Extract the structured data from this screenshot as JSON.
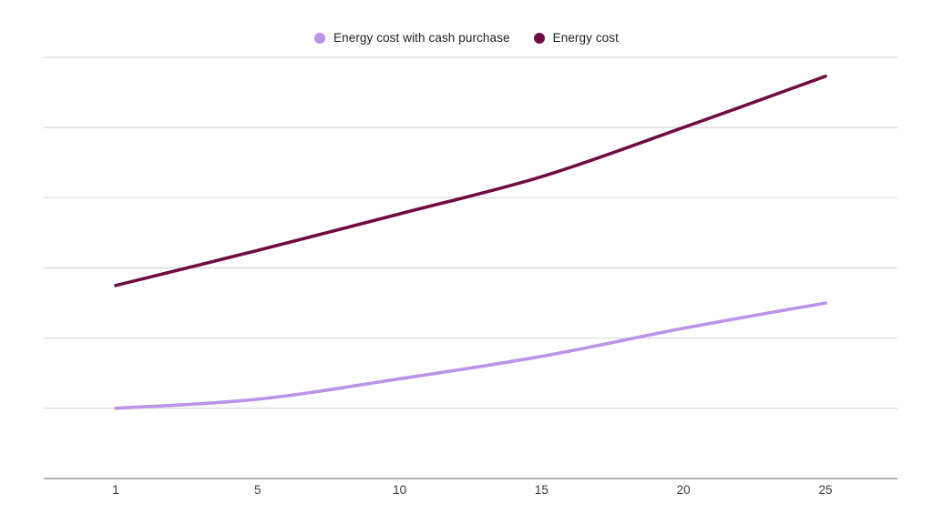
{
  "legend": {
    "items": [
      {
        "label": "Energy cost with cash purchase",
        "color": "#bb93e8"
      },
      {
        "label": "Energy cost",
        "color": "#6f0d42"
      }
    ]
  },
  "chart_data": {
    "type": "line",
    "title": "",
    "xlabel": "",
    "ylabel": "",
    "x": [
      1,
      5,
      10,
      15,
      20,
      25
    ],
    "x_tick_labels": [
      "1",
      "5",
      "10",
      "15",
      "20",
      "25"
    ],
    "series": [
      {
        "name": "Energy cost with cash purchase",
        "color": "#bb93e8",
        "values": [
          1.0,
          1.13,
          1.42,
          1.74,
          2.14,
          2.5
        ]
      },
      {
        "name": "Energy cost",
        "color": "#6f0d42",
        "values": [
          2.75,
          3.25,
          3.77,
          4.3,
          5.0,
          5.73
        ]
      }
    ],
    "ylim": [
      0,
      6.5
    ],
    "y_tick_labels": [],
    "grid": "horizontal",
    "gridline_values": [
      1,
      2,
      3,
      4,
      5,
      6
    ],
    "legend_position": "top-center"
  },
  "colors": {
    "background": "#ffffff",
    "gridline": "#d9d9d9",
    "axis_line": "#9a9a9a",
    "tick_label": "#3a3a3a",
    "legend_text": "#1f1f1f"
  }
}
